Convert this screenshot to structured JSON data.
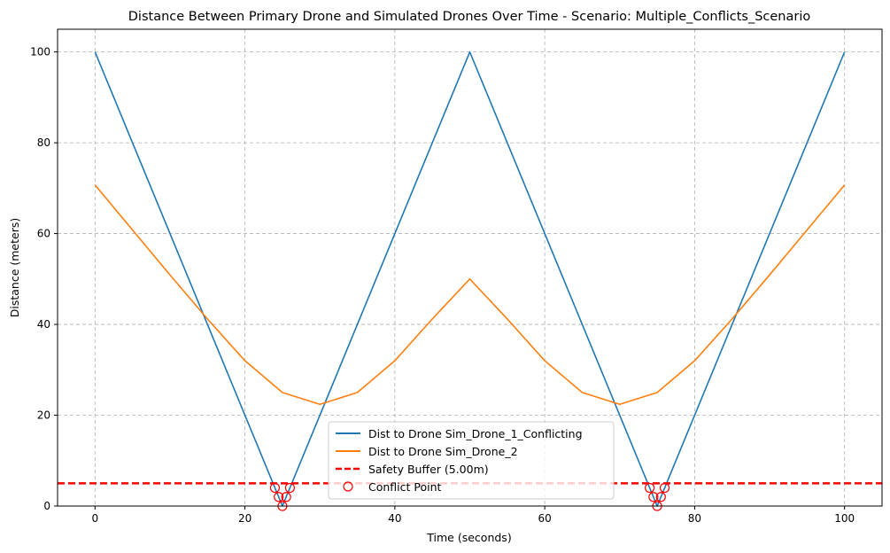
{
  "chart_data": {
    "type": "line",
    "title": "Distance Between Primary Drone and Simulated Drones Over Time - Scenario: Multiple_Conflicts_Scenario",
    "xlabel": "Time (seconds)",
    "ylabel": "Distance (meters)",
    "xlim": [
      -5,
      105
    ],
    "ylim": [
      0,
      105
    ],
    "xticks": [
      0,
      20,
      40,
      60,
      80,
      100
    ],
    "yticks": [
      0,
      20,
      40,
      60,
      80,
      100
    ],
    "grid": true,
    "legend_position": "lower center",
    "series": [
      {
        "name": "Dist to Drone Sim_Drone_1_Conflicting",
        "color": "#1f77b4",
        "style": "solid",
        "x": [
          0,
          25,
          50,
          75,
          100
        ],
        "y": [
          100,
          0,
          100,
          0,
          100
        ]
      },
      {
        "name": "Dist to Drone Sim_Drone_2",
        "color": "#ff7f0e",
        "style": "solid",
        "x": [
          0,
          5,
          10,
          15,
          20,
          25,
          30,
          35,
          40,
          45,
          50,
          55,
          60,
          65,
          70,
          75,
          80,
          85,
          90,
          95,
          100
        ],
        "y": [
          70.7,
          60.8,
          50.9,
          41.2,
          32.0,
          25.0,
          22.4,
          25.0,
          32.0,
          41.2,
          50.0,
          41.2,
          32.0,
          25.0,
          22.4,
          25.0,
          32.0,
          41.2,
          50.9,
          60.8,
          70.7
        ]
      },
      {
        "name": "Safety Buffer (5.00m)",
        "color": "#ff0000",
        "style": "dashed",
        "y_constant": 5
      },
      {
        "name": "Conflict Point",
        "color": "#ff0000",
        "style": "marker-circle",
        "x": [
          24,
          24.5,
          25,
          25.5,
          26,
          74,
          74.5,
          75,
          75.5,
          76
        ],
        "y": [
          4,
          2,
          0,
          2,
          4,
          4,
          2,
          0,
          2,
          4
        ]
      }
    ]
  }
}
